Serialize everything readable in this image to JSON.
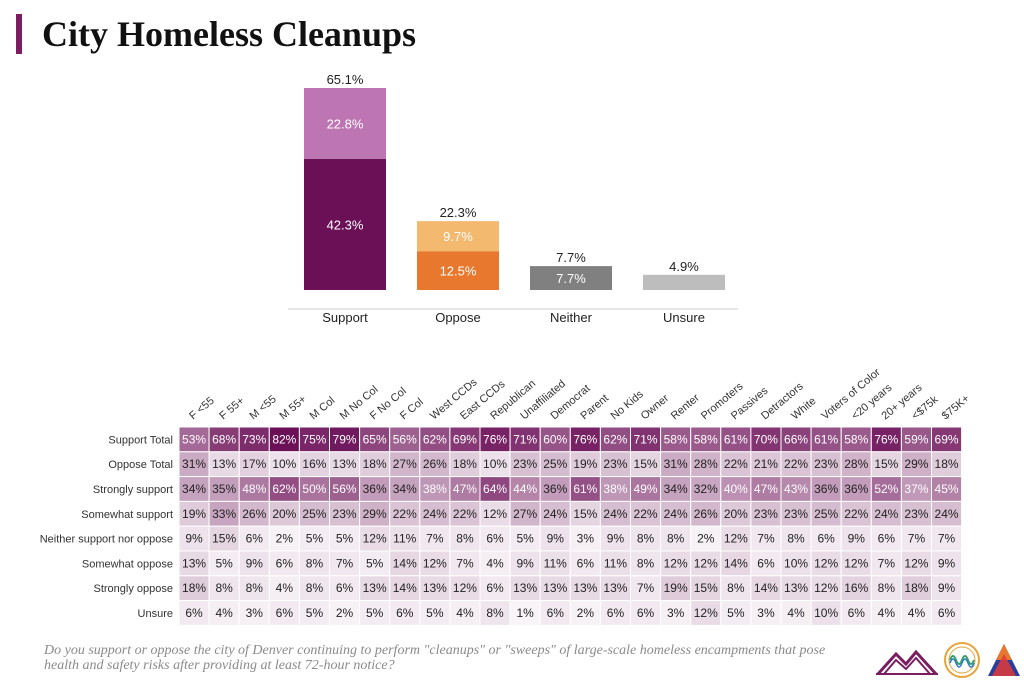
{
  "title": "City Homeless Cleanups",
  "question": "Do you support or oppose the city of Denver continuing to perform \"cleanups\" or \"sweeps\" of large-scale homeless encampments that pose health and safety risks after providing at least 72-hour notice?",
  "colors": {
    "accent": "#7a1e5f",
    "support_strong": "#6b0f57",
    "support_somewhat": "#bd76b3",
    "oppose_strong": "#e8782e",
    "oppose_somewhat": "#f3b96e",
    "neither": "#808080",
    "unsure": "#bdbdbd"
  },
  "chart_data": [
    {
      "type": "bar",
      "stacked": true,
      "categories": [
        "Support",
        "Oppose",
        "Neither",
        "Unsure"
      ],
      "totals": [
        "65.1%",
        "22.3%",
        "7.7%",
        "4.9%"
      ],
      "total_values": [
        65.1,
        22.3,
        7.7,
        4.9
      ],
      "segments": [
        [
          {
            "label": "42.3%",
            "value": 42.3,
            "color": "#6b0f57"
          },
          {
            "label": "22.8%",
            "value": 22.8,
            "color": "#bd76b3"
          }
        ],
        [
          {
            "label": "12.5%",
            "value": 12.5,
            "color": "#e8782e"
          },
          {
            "label": "9.7%",
            "value": 9.7,
            "color": "#f3b96e"
          }
        ],
        [
          {
            "label": "7.7%",
            "value": 7.7,
            "color": "#808080"
          }
        ],
        [
          {
            "label": "",
            "value": 4.9,
            "color": "#bdbdbd"
          }
        ]
      ],
      "ylim": [
        0,
        70
      ]
    },
    {
      "type": "heatmap",
      "columns": [
        "F <55",
        "F 55+",
        "M <55",
        "M 55+",
        "M Col",
        "M No Col",
        "F No Col",
        "F Col",
        "West CCDs",
        "East CCDs",
        "Republican",
        "Unaffiliated",
        "Democrat",
        "Parent",
        "No Kids",
        "Owner",
        "Renter",
        "Promoters",
        "Passives",
        "Detractors",
        "White",
        "Voters of Color",
        "<20 years",
        "20+ years",
        "<$75k",
        "$75K+"
      ],
      "rows": [
        {
          "label": "Support Total",
          "values": [
            53,
            68,
            73,
            82,
            75,
            79,
            65,
            56,
            62,
            69,
            76,
            71,
            60,
            76,
            62,
            71,
            58,
            58,
            61,
            70,
            66,
            61,
            58,
            76,
            59,
            69
          ]
        },
        {
          "label": "Oppose Total",
          "values": [
            31,
            13,
            17,
            10,
            16,
            13,
            18,
            27,
            26,
            18,
            10,
            23,
            25,
            19,
            23,
            15,
            31,
            28,
            22,
            21,
            22,
            23,
            28,
            15,
            29,
            18
          ]
        },
        {
          "label": "Strongly support",
          "values": [
            34,
            35,
            48,
            62,
            50,
            56,
            36,
            34,
            38,
            47,
            64,
            44,
            36,
            61,
            38,
            49,
            34,
            32,
            40,
            47,
            43,
            36,
            36,
            52,
            37,
            45
          ]
        },
        {
          "label": "Somewhat support",
          "values": [
            19,
            33,
            26,
            20,
            25,
            23,
            29,
            22,
            24,
            22,
            12,
            27,
            24,
            15,
            24,
            22,
            24,
            26,
            20,
            23,
            23,
            25,
            22,
            24,
            23,
            24
          ]
        },
        {
          "label": "Neither support nor oppose",
          "values": [
            9,
            15,
            6,
            2,
            5,
            5,
            12,
            11,
            7,
            8,
            6,
            5,
            9,
            3,
            9,
            8,
            8,
            2,
            12,
            7,
            8,
            6,
            9,
            6,
            7,
            7
          ]
        },
        {
          "label": "Somewhat oppose",
          "values": [
            13,
            5,
            9,
            6,
            8,
            7,
            5,
            14,
            12,
            7,
            4,
            9,
            11,
            6,
            11,
            8,
            12,
            12,
            14,
            6,
            10,
            12,
            12,
            7,
            12,
            9
          ]
        },
        {
          "label": "Strongly oppose",
          "values": [
            18,
            8,
            8,
            4,
            8,
            6,
            13,
            14,
            13,
            12,
            6,
            13,
            13,
            13,
            13,
            7,
            19,
            15,
            8,
            14,
            13,
            12,
            16,
            8,
            18,
            9
          ]
        },
        {
          "label": "Unsure",
          "values": [
            6,
            4,
            3,
            6,
            5,
            2,
            5,
            6,
            5,
            4,
            8,
            1,
            6,
            2,
            6,
            6,
            3,
            12,
            5,
            3,
            4,
            10,
            6,
            4,
            4,
            6
          ]
        }
      ]
    }
  ]
}
